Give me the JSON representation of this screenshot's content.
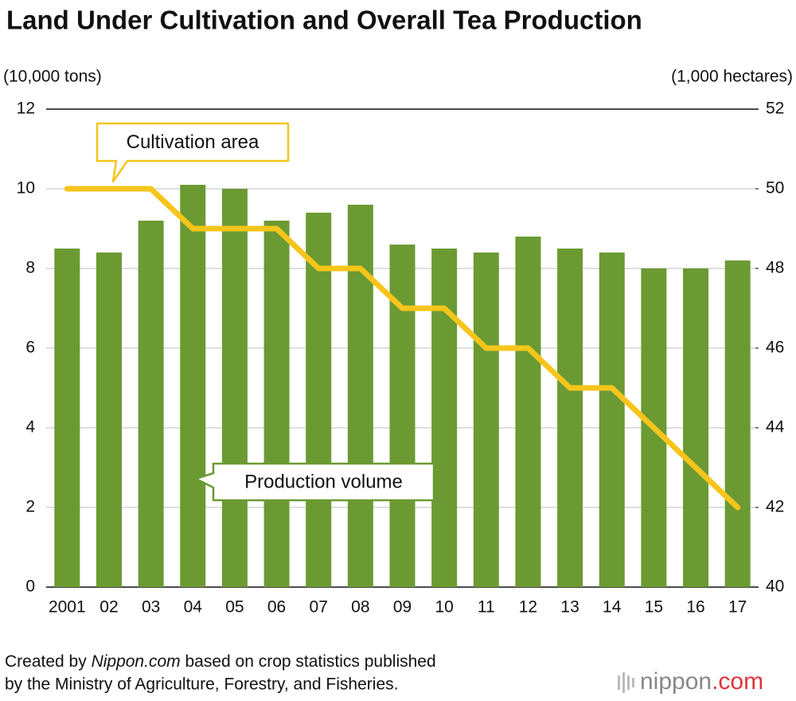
{
  "chart_data": {
    "type": "bar",
    "title": "Land Under Cultivation and Overall Tea Production",
    "y_label": "(10,000 tons)",
    "y2_label": "(1,000 hectares)",
    "categories": [
      "2001",
      "02",
      "03",
      "04",
      "05",
      "06",
      "07",
      "08",
      "09",
      "10",
      "11",
      "12",
      "13",
      "14",
      "15",
      "16",
      "17"
    ],
    "series": [
      {
        "name": "Production volume",
        "type": "bar",
        "color": "#6b9a32",
        "values": [
          8.5,
          8.4,
          9.2,
          10.1,
          10.0,
          9.2,
          9.4,
          9.6,
          8.6,
          8.5,
          8.4,
          8.8,
          8.5,
          8.4,
          8.0,
          8.0,
          8.2
        ]
      },
      {
        "name": "Cultivation area",
        "type": "line",
        "axis": "y2",
        "color": "#f6c51b",
        "values": [
          50,
          50,
          50,
          49,
          49,
          49,
          48,
          48,
          47,
          47,
          46,
          46,
          45,
          45,
          44,
          43,
          42
        ]
      }
    ],
    "ylim": [
      0,
      12
    ],
    "yticks": [
      0,
      2,
      4,
      6,
      8,
      10,
      12
    ],
    "y2lim": [
      40,
      52
    ],
    "y2ticks": [
      40,
      42,
      44,
      46,
      48,
      50,
      52
    ],
    "grid": true,
    "source": [
      "Created by ",
      "Nippon.com",
      " based on crop statistics published",
      "by the Ministry of Agriculture, Forestry, and Fisheries."
    ],
    "logo": [
      "nippon",
      ".com"
    ]
  }
}
